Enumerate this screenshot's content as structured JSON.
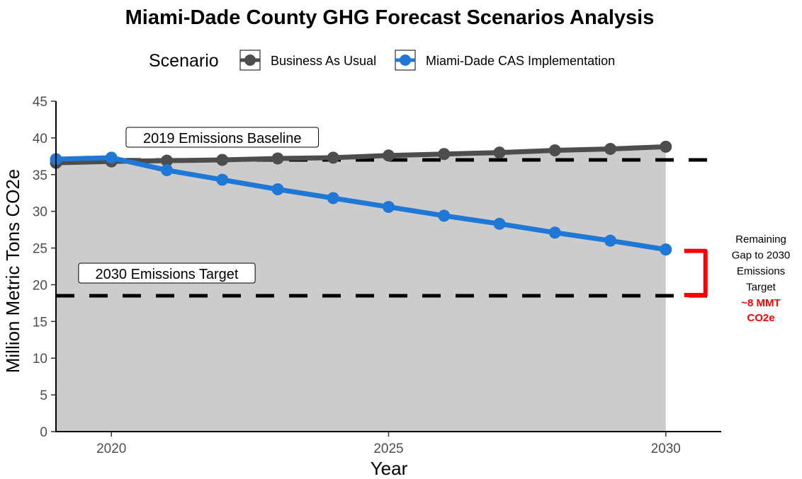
{
  "chart_data": {
    "type": "line",
    "title": "Miami-Dade County GHG Forecast Scenarios Analysis",
    "xlabel": "Year",
    "ylabel": "Million Metric Tons CO2e",
    "xlim": [
      2019,
      2031
    ],
    "ylim": [
      0,
      45
    ],
    "x_ticks": [
      2020,
      2025,
      2030
    ],
    "y_ticks": [
      0,
      5,
      10,
      15,
      20,
      25,
      30,
      35,
      40,
      45
    ],
    "grid": false,
    "legend": {
      "title": "Scenario",
      "placement": "top",
      "entries": [
        "Business As Usual",
        "Miami-Dade CAS Implementation"
      ]
    },
    "series": [
      {
        "name": "Business As Usual",
        "color": "#4d4d4d",
        "x": [
          2019,
          2020,
          2021,
          2022,
          2023,
          2024,
          2025,
          2026,
          2027,
          2028,
          2029,
          2030
        ],
        "values": [
          36.6,
          36.8,
          36.9,
          37.0,
          37.2,
          37.3,
          37.6,
          37.8,
          38.0,
          38.3,
          38.5,
          38.8
        ]
      },
      {
        "name": "Miami-Dade CAS Implementation",
        "color": "#1f78d6",
        "x": [
          2019,
          2020,
          2021,
          2022,
          2023,
          2024,
          2025,
          2026,
          2027,
          2028,
          2029,
          2030
        ],
        "values": [
          37.1,
          37.3,
          35.6,
          34.3,
          33.0,
          31.8,
          30.6,
          29.4,
          28.3,
          27.1,
          26.0,
          24.8
        ]
      }
    ],
    "area_fill_color": "#cccccc",
    "reference_lines": [
      {
        "label": "2019 Emissions Baseline",
        "value": 37.0,
        "label_x": 2022
      },
      {
        "label": "2030 Emissions Target",
        "value": 18.5,
        "label_x": 2021
      }
    ],
    "gap_note": {
      "lines": [
        "Remaining",
        "Gap to 2030",
        "Emissions",
        "Target"
      ],
      "highlight_lines": [
        "~8 MMT",
        "CO2e"
      ],
      "bracket_color": "#ff0000"
    }
  }
}
